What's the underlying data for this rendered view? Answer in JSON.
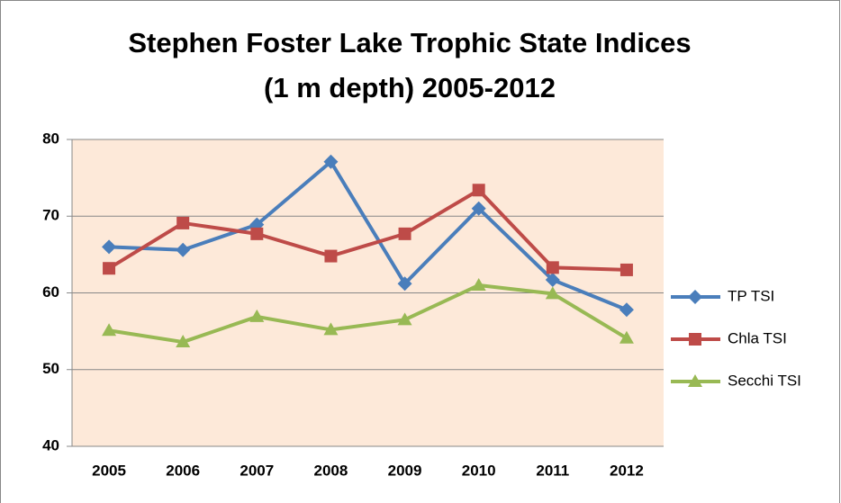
{
  "chart_data": {
    "type": "line",
    "title": [
      "Stephen Foster Lake Trophic State Indices",
      "(1 m depth) 2005-2012"
    ],
    "categories": [
      "2005",
      "2006",
      "2007",
      "2008",
      "2009",
      "2010",
      "2011",
      "2012"
    ],
    "series": [
      {
        "name": "TP TSI",
        "color": "#4a7ebb",
        "marker": "diamond",
        "values": [
          66.0,
          65.6,
          68.9,
          77.1,
          61.2,
          71.0,
          61.7,
          57.8
        ]
      },
      {
        "name": "Chla TSI",
        "color": "#be4b48",
        "marker": "square",
        "values": [
          63.2,
          69.1,
          67.7,
          64.8,
          67.7,
          73.4,
          63.3,
          63.0
        ]
      },
      {
        "name": "Secchi TSI",
        "color": "#98b954",
        "marker": "triangle",
        "values": [
          55.1,
          53.6,
          56.9,
          55.2,
          56.5,
          61.0,
          59.9,
          54.1
        ]
      }
    ],
    "ylim": [
      40,
      80
    ],
    "yticks": [
      40,
      50,
      60,
      70,
      80
    ],
    "grid": true,
    "legend": "right",
    "plot_background": "#fde9d9"
  }
}
